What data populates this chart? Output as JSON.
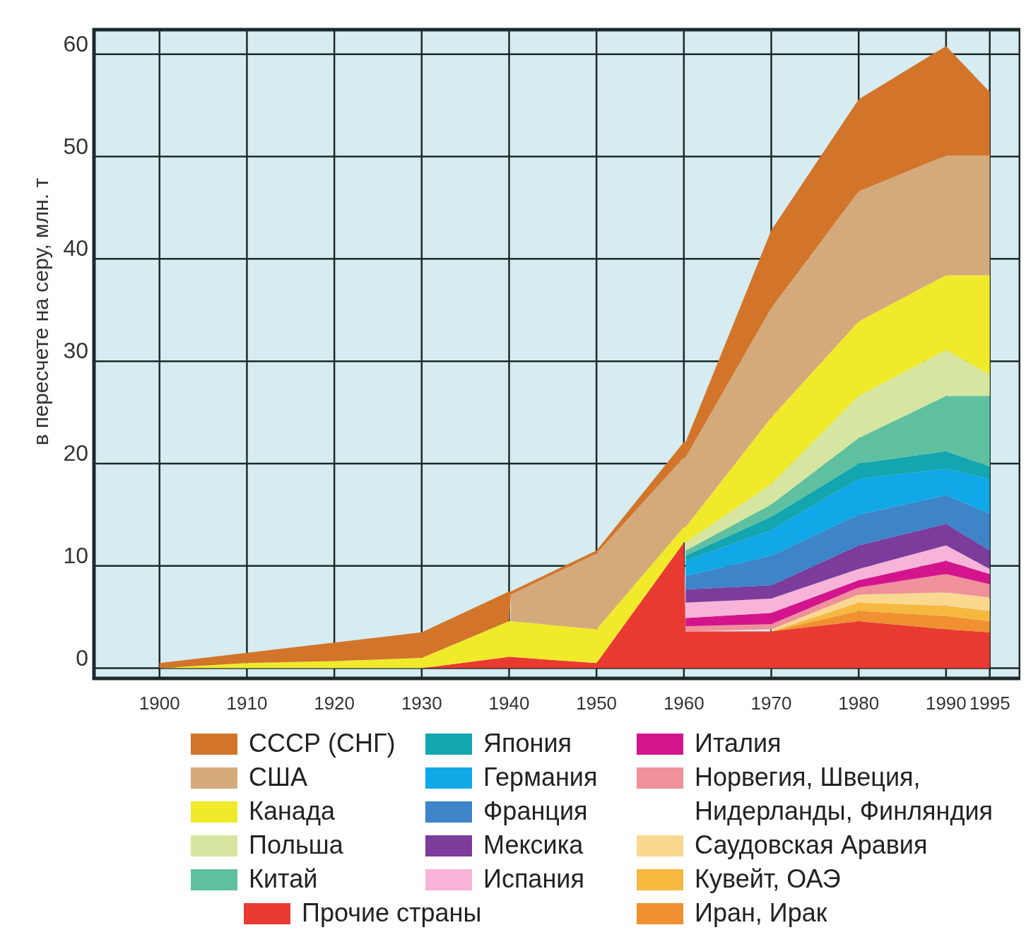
{
  "chart_data": {
    "type": "area",
    "stacked": true,
    "ylabel": "в пересчете на серу, млн. т",
    "x": [
      1900,
      1910,
      1920,
      1930,
      1940,
      1940.2,
      1950,
      1960,
      1960.2,
      1970,
      1980,
      1990,
      1995
    ],
    "xlim": [
      1892.5,
      1998.5
    ],
    "xticks": [
      1900,
      1910,
      1920,
      1930,
      1940,
      1950,
      1960,
      1970,
      1980,
      1990,
      1995
    ],
    "ylim": [
      -1,
      62.4
    ],
    "yticks": [
      0,
      10,
      20,
      30,
      40,
      50,
      60
    ],
    "grid": true,
    "legend": "bottom",
    "series": [
      {
        "name": "Прочие страны",
        "color": "#e83a30",
        "values": [
          0,
          0,
          0,
          0,
          1.1,
          1.1,
          0.5,
          12.3,
          3.6,
          3.6,
          4.6,
          3.8,
          3.5
        ]
      },
      {
        "name": "Иран, Ирак",
        "color": "#f09030",
        "values": [
          null,
          null,
          null,
          null,
          null,
          null,
          null,
          null,
          null,
          0,
          1.0,
          1.3,
          1.1
        ]
      },
      {
        "name": "Кувейт, ОАЭ",
        "color": "#f7b840",
        "values": [
          null,
          null,
          null,
          null,
          null,
          null,
          null,
          null,
          null,
          0,
          0.8,
          1.0,
          1.0
        ]
      },
      {
        "name": "Саудовская Аравия",
        "color": "#fbd890",
        "values": [
          null,
          null,
          null,
          null,
          null,
          null,
          null,
          null,
          null,
          0.2,
          0.8,
          1.3,
          1.3
        ]
      },
      {
        "name": "Норвегия, Швеция, Нидерланды, Финляндия",
        "color": "#f0909a",
        "values": [
          null,
          null,
          null,
          null,
          null,
          null,
          null,
          null,
          0.5,
          0.5,
          0.7,
          1.8,
          1.3
        ]
      },
      {
        "name": "Италия",
        "color": "#d4148c",
        "values": [
          null,
          null,
          null,
          null,
          null,
          null,
          null,
          null,
          0.8,
          1.1,
          0.7,
          1.3,
          1.0
        ]
      },
      {
        "name": "Испания",
        "color": "#f7b3d8",
        "values": [
          null,
          null,
          null,
          null,
          null,
          null,
          null,
          null,
          1.5,
          1.4,
          1.1,
          1.5,
          0.5
        ]
      },
      {
        "name": "Мексика",
        "color": "#7b3c9c",
        "values": [
          null,
          null,
          null,
          null,
          null,
          null,
          null,
          null,
          1.3,
          1.3,
          2.3,
          2.1,
          1.8
        ]
      },
      {
        "name": "Франция",
        "color": "#3d84c8",
        "values": [
          null,
          null,
          null,
          null,
          null,
          null,
          null,
          null,
          1.3,
          2.9,
          3.0,
          2.8,
          3.6
        ]
      },
      {
        "name": "Германия",
        "color": "#10a8e6",
        "values": [
          null,
          null,
          null,
          null,
          null,
          null,
          null,
          null,
          1.5,
          2.5,
          3.5,
          2.6,
          3.4
        ]
      },
      {
        "name": "Япония",
        "color": "#13a5b0",
        "values": [
          null,
          null,
          null,
          null,
          null,
          null,
          null,
          null,
          0.5,
          1.3,
          1.5,
          1.7,
          1.2
        ]
      },
      {
        "name": "Китай",
        "color": "#5fc0a0",
        "values": [
          null,
          null,
          null,
          null,
          null,
          null,
          null,
          null,
          0.5,
          1.2,
          2.5,
          5.4,
          6.9
        ]
      },
      {
        "name": "Польша",
        "color": "#d6e6a0",
        "values": [
          null,
          null,
          null,
          null,
          null,
          null,
          null,
          null,
          0.8,
          2.0,
          4.1,
          4.5,
          2.1
        ]
      },
      {
        "name": "Канада",
        "color": "#f0ea2a",
        "values": [
          0,
          0.5,
          0.7,
          1.0,
          3.5,
          3.5,
          3.3,
          1.5,
          1.5,
          6.5,
          7.3,
          7.3,
          9.7
        ]
      },
      {
        "name": "США",
        "color": "#d4aa7a",
        "values": [
          null,
          null,
          null,
          null,
          null,
          2.6,
          7.4,
          6.8,
          6.8,
          10.7,
          12.7,
          11.7,
          11.7
        ]
      },
      {
        "name": "СССР (СНГ)",
        "color": "#d2752a",
        "values": [
          0.5,
          1.0,
          1.8,
          2.5,
          2.9,
          0.3,
          0.3,
          1.5,
          1.5,
          7.6,
          9.0,
          10.7,
          6.2
        ]
      }
    ]
  }
}
